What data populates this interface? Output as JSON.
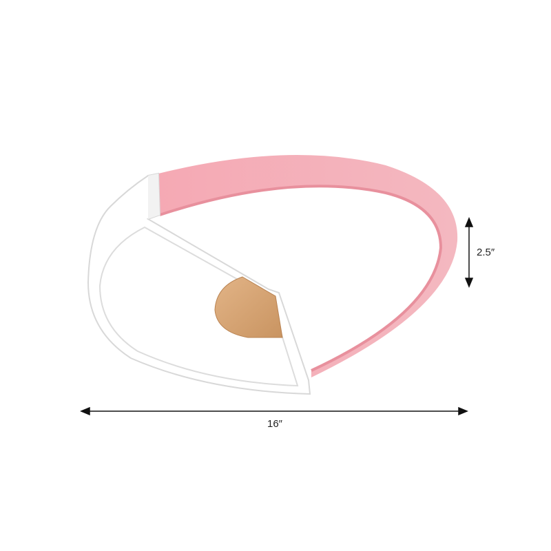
{
  "product": {
    "colors": {
      "ring": "#f2aeb7",
      "ring_side": "#e8909d",
      "frame": "#ffffff",
      "frame_edge": "#d8d8d8",
      "wood": "#d6a372"
    }
  },
  "dimensions": {
    "width_label": "16″",
    "height_label": "2.5″"
  }
}
